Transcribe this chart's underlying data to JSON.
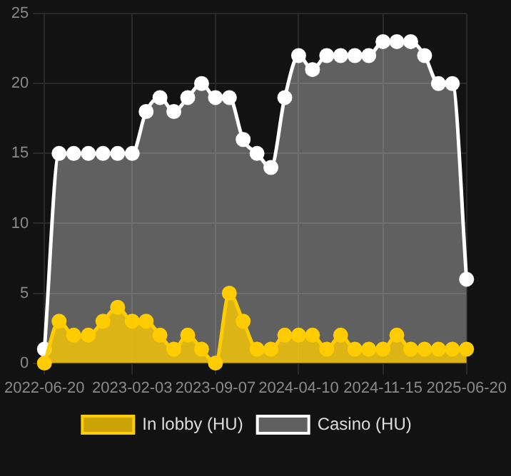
{
  "chart_data": {
    "type": "area",
    "x": [
      "2022-06-20",
      "2022-07-28",
      "2022-09-04",
      "2022-10-12",
      "2022-11-19",
      "2022-12-27",
      "2023-02-03",
      "2023-03-11",
      "2023-04-16",
      "2023-05-22",
      "2023-06-27",
      "2023-08-02",
      "2023-09-07",
      "2023-10-13",
      "2023-11-18",
      "2023-12-24",
      "2024-01-29",
      "2024-03-05",
      "2024-04-10",
      "2024-05-16",
      "2024-06-22",
      "2024-07-28",
      "2024-09-03",
      "2024-10-09",
      "2024-11-15",
      "2024-12-21",
      "2025-01-26",
      "2025-03-03",
      "2025-04-08",
      "2025-05-14",
      "2025-06-20"
    ],
    "series": [
      {
        "name": "In lobby (HU)",
        "color": "#ffcc00",
        "values": [
          0,
          3,
          2,
          2,
          3,
          4,
          3,
          3,
          2,
          1,
          2,
          1,
          0,
          5,
          3,
          1,
          1,
          2,
          2,
          2,
          1,
          2,
          1,
          1,
          1,
          2,
          1,
          1,
          1,
          1,
          1
        ]
      },
      {
        "name": "Casino (HU)",
        "color": "#ffffff",
        "values": [
          1,
          15,
          15,
          15,
          15,
          15,
          15,
          18,
          19,
          18,
          19,
          20,
          19,
          19,
          16,
          15,
          14,
          19,
          22,
          21,
          22,
          22,
          22,
          22,
          23,
          23,
          23,
          22,
          20,
          20,
          6
        ]
      }
    ],
    "xlim": [
      "2022-06-20",
      "2025-06-20"
    ],
    "xticks": [
      "2022-06-20",
      "2023-02-03",
      "2023-09-07",
      "2024-04-10",
      "2024-11-15",
      "2025-06-20"
    ],
    "ylim": [
      0,
      25
    ],
    "yticks": [
      0,
      5,
      10,
      15,
      20,
      25
    ],
    "grid": true,
    "legend": "bottom",
    "marker": "circle",
    "line_style": "solid"
  }
}
